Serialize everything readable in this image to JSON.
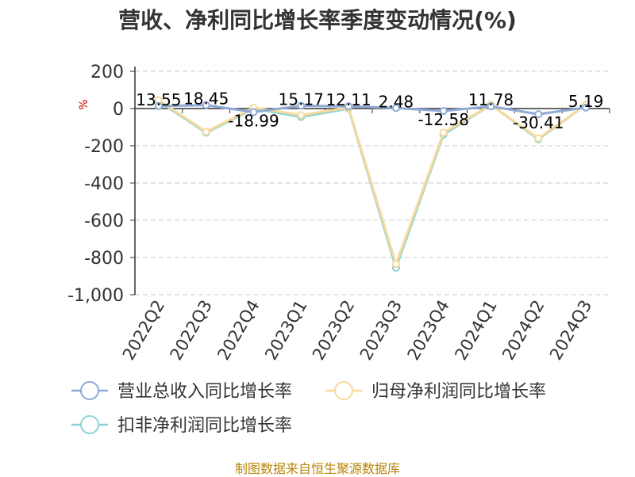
{
  "title": "营收、净利同比增长率季度变动情况(%)",
  "source": "制图数据来自恒生聚源数据库",
  "chart_data": {
    "type": "line",
    "categories": [
      "2022Q2",
      "2022Q3",
      "2022Q4",
      "2023Q1",
      "2023Q2",
      "2023Q3",
      "2023Q4",
      "2024Q1",
      "2024Q2",
      "2024Q3"
    ],
    "ylabel": "%",
    "ylim": [
      -1000,
      200
    ],
    "yticks": [
      200,
      0,
      -200,
      -400,
      -600,
      -800,
      -1000
    ],
    "ytick_labels": [
      "200",
      "0",
      "-200",
      "-400",
      "-600",
      "-800",
      "-1,000"
    ],
    "grid": true,
    "legend_position": "bottom-left",
    "series": [
      {
        "name": "营业总收入同比增长率",
        "color": "#8fa9d6",
        "values": [
          13.55,
          18.45,
          -18.99,
          15.17,
          12.11,
          2.48,
          -12.58,
          11.78,
          -30.41,
          5.19
        ],
        "data_labels": [
          "13.55",
          "18.45",
          "-18.99",
          "15.17",
          "12.11",
          "2.48",
          "-12.58",
          "11.78",
          "-30.41",
          "5.19"
        ]
      },
      {
        "name": "归母净利润同比增长率",
        "color": "#f8d99c",
        "values": [
          45,
          -125,
          5,
          -35,
          5,
          -835,
          -130,
          20,
          -160,
          20
        ]
      },
      {
        "name": "扣非净利润同比增长率",
        "color": "#8ad3d3",
        "values": [
          40,
          -130,
          0,
          -45,
          0,
          -855,
          -140,
          20,
          -165,
          20
        ]
      }
    ]
  }
}
